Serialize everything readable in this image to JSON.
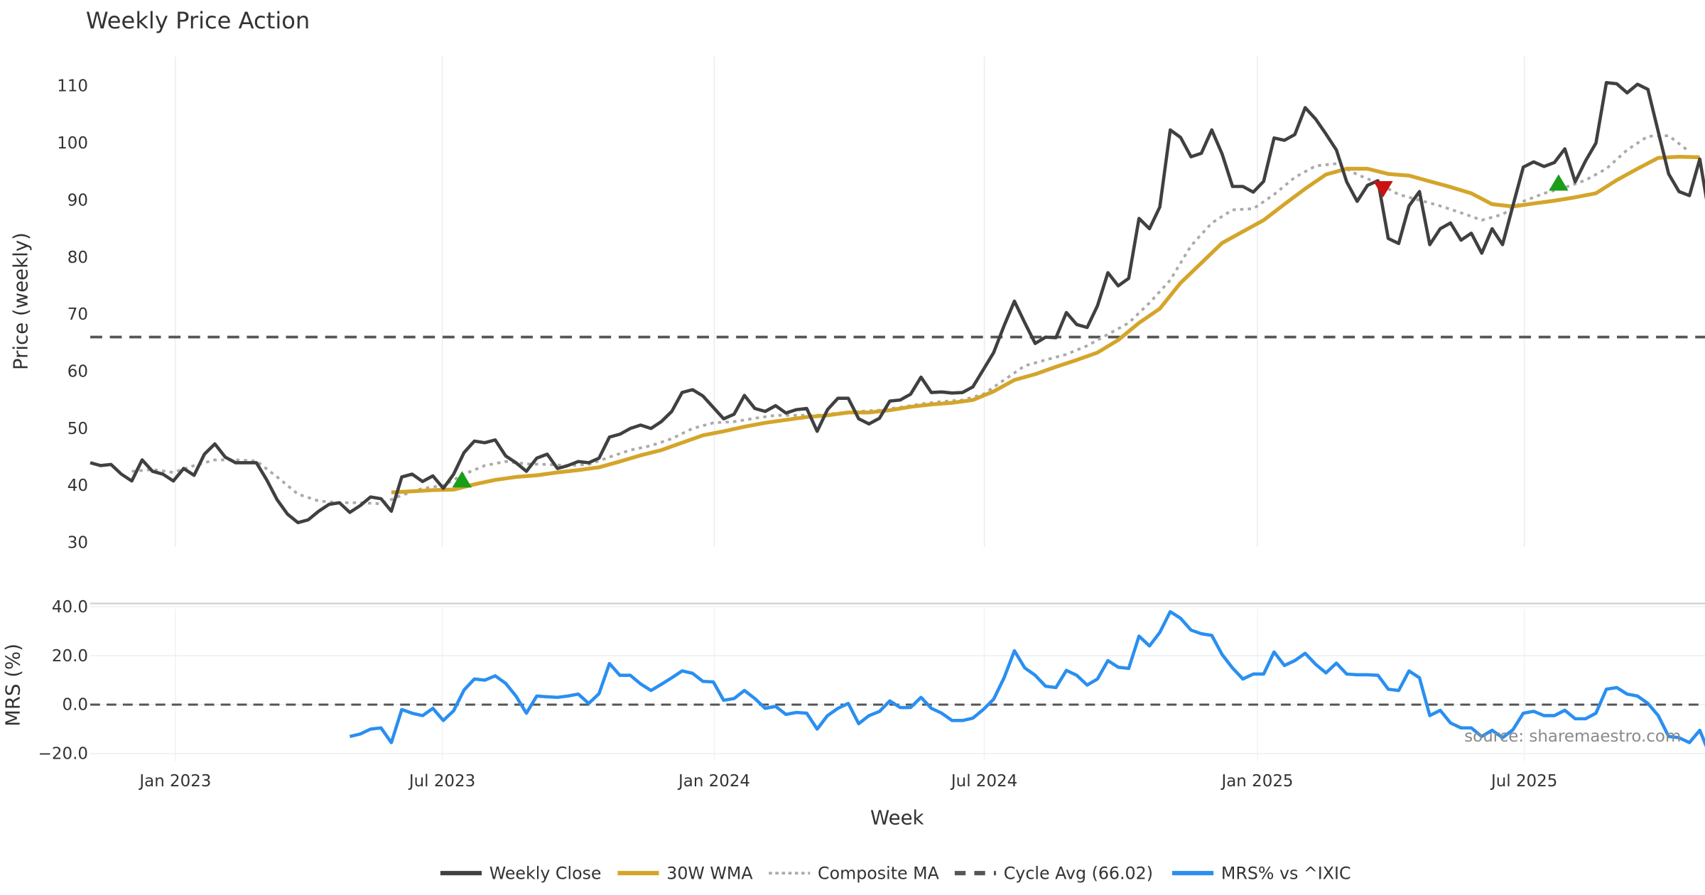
{
  "chart_data": [
    {
      "type": "line",
      "title": "Weekly Price Action",
      "ylabel": "Price (weekly)",
      "xlabel": "Week",
      "x_units": "week index since first plotted week",
      "ylim": [
        30,
        110
      ],
      "yticks": [
        30,
        40,
        50,
        60,
        70,
        80,
        90,
        100,
        110
      ],
      "xticks": [
        {
          "week": 8.2,
          "label": "Jan 2023"
        },
        {
          "week": 33.9,
          "label": "Jul 2023"
        },
        {
          "week": 60.1,
          "label": "Jan 2024"
        },
        {
          "week": 86.1,
          "label": "Jul 2024"
        },
        {
          "week": 112.4,
          "label": "Jan 2025"
        },
        {
          "week": 138.1,
          "label": "Jul 2025"
        }
      ],
      "xlim": [
        0,
        155.5
      ],
      "grid": "vertical",
      "series": [
        {
          "name": "Weekly Close",
          "color": "#404040",
          "start_week": 0,
          "step": 1,
          "values": [
            44,
            43.5,
            43.7,
            42,
            40.8,
            44.5,
            42.5,
            42,
            40.8,
            43,
            41.8,
            45.5,
            47.3,
            45,
            44,
            44,
            44,
            41,
            37.5,
            35,
            33.5,
            34,
            35.5,
            36.7,
            37,
            35.3,
            36.5,
            38,
            37.7,
            35.5,
            41.5,
            42,
            40.7,
            41.7,
            39.5,
            42,
            45.8,
            47.8,
            47.5,
            48,
            45.2,
            44,
            42.5,
            44.8,
            45.5,
            43,
            43.5,
            44.2,
            44,
            44.8,
            48.5,
            49,
            50,
            50.6,
            50,
            51.2,
            53,
            56.3,
            56.8,
            55.7,
            53.7,
            51.7,
            52.5,
            55.8,
            53.5,
            53,
            54,
            52.7,
            53.3,
            53.5,
            49.5,
            53.3,
            55.3,
            55.3,
            51.7,
            50.8,
            51.8,
            54.8,
            55,
            56,
            59,
            56.3,
            56.4,
            56.2,
            56.3,
            57.3,
            60.3,
            63.3,
            68,
            72.3,
            68.5,
            64.9,
            66,
            65.9,
            70.3,
            68.2,
            67.7,
            71.5,
            77.3,
            75,
            76.3,
            86.8,
            85,
            88.8,
            102.3,
            101,
            97.6,
            98.2,
            102.3,
            98.1,
            92.4,
            92.4,
            91.4,
            93.3,
            100.9,
            100.5,
            101.5,
            106.2,
            104.2,
            101.6,
            98.8,
            93.2,
            89.8,
            92.6,
            93.4,
            83.3,
            82.4,
            89,
            91.5,
            82.2,
            85,
            86,
            83,
            84.2,
            80.7,
            85,
            82.2,
            89,
            95.8,
            96.7,
            95.9,
            96.6,
            99,
            93.2,
            96.9,
            100,
            110.6,
            110.4,
            108.8,
            110.3,
            109.4,
            102,
            94.6,
            91.5,
            90.8,
            97.2,
            86.3
          ]
        },
        {
          "name": "30W WMA",
          "color": "#D4A52A",
          "start_week": 29,
          "step": 2,
          "values": [
            38.8,
            39,
            39.2,
            39.3,
            40.2,
            41,
            41.5,
            41.8,
            42.3,
            42.7,
            43.2,
            44.2,
            45.3,
            46.2,
            47.5,
            48.8,
            49.5,
            50.3,
            51,
            51.5,
            52,
            52.3,
            52.8,
            52.8,
            53.2,
            53.8,
            54.2,
            54.5,
            55,
            56.5,
            58.5,
            59.5,
            60.8,
            62,
            63.3,
            65.5,
            68.5,
            71,
            75.5,
            79,
            82.5,
            84.5,
            86.5,
            89.3,
            92,
            94.5,
            95.5,
            95.5,
            94.6,
            94.3,
            93.3,
            92.3,
            91.2,
            89.3,
            88.9,
            89.4,
            89.9,
            90.5,
            91.2,
            93.5,
            95.5,
            97.4,
            97.6,
            97.5
          ]
        },
        {
          "name": "Composite MA",
          "color": "#AAAAAA",
          "start_week": 4,
          "step": 2,
          "values": [
            42.5,
            42.8,
            42.3,
            43.5,
            44.5,
            44.5,
            44.3,
            41.5,
            38.5,
            37.3,
            37,
            37,
            36.8,
            38.3,
            39.5,
            40,
            42,
            43.5,
            44.2,
            43.8,
            43.7,
            43.5,
            43.7,
            45,
            46.2,
            47,
            48.2,
            50,
            51,
            51.2,
            51.8,
            52.3,
            52.3,
            52.3,
            52.7,
            53,
            53.2,
            53.7,
            54.3,
            54.7,
            55,
            56,
            58.5,
            61,
            62,
            63,
            64.5,
            66.5,
            68.5,
            72,
            76,
            82,
            86,
            88.3,
            88.5,
            91,
            94,
            96,
            96.4,
            94.5,
            93,
            91,
            90,
            89,
            87.8,
            86.5,
            87.5,
            89.8,
            91.2,
            92.2,
            93.5,
            95.5,
            98.8,
            101.2,
            101.3,
            98.5
          ]
        },
        {
          "name": "Cycle Avg (66.02)",
          "color": "#555555",
          "constant": 66.02
        }
      ],
      "signals": [
        {
          "type": "buy",
          "week": 35.8,
          "value": 41,
          "color": "#1a9e1a"
        },
        {
          "type": "sell",
          "week": 124.5,
          "value": 92,
          "color": "#cc1111"
        },
        {
          "type": "buy",
          "week": 141.4,
          "value": 93,
          "color": "#1a9e1a"
        }
      ]
    },
    {
      "type": "line",
      "ylabel": "MRS (%)",
      "ylim": [
        -20,
        40
      ],
      "yticks": [
        -20.0,
        0.0,
        20.0,
        40.0
      ],
      "ytick_labels": [
        "−20.0",
        "0.0",
        "20.0",
        "40.0"
      ],
      "series": [
        {
          "name": "MRS% vs ^IXIC",
          "color": "#2A8FF0",
          "start_week": 25,
          "step": 1,
          "values": [
            -13,
            -12,
            -10,
            -9.5,
            -15.5,
            -2,
            -3.5,
            -4.5,
            -1.5,
            -6.5,
            -2.5,
            6,
            10.5,
            10,
            11.8,
            8.7,
            3.5,
            -3.5,
            3.5,
            3.2,
            3,
            3.5,
            4.3,
            0.5,
            4.5,
            16.8,
            12,
            12,
            8.5,
            5.8,
            8.3,
            11,
            13.8,
            12.8,
            9.5,
            9.3,
            1.8,
            2.5,
            5.8,
            2.5,
            -1.5,
            -0.7,
            -4,
            -3.2,
            -3.5,
            -10,
            -4.5,
            -1.5,
            0.5,
            -7.8,
            -4.5,
            -2.8,
            1.5,
            -1.2,
            -1.2,
            3,
            -1.5,
            -3.5,
            -6.5,
            -6.5,
            -5.5,
            -2,
            2.2,
            11,
            22,
            15,
            12,
            7.5,
            7,
            14,
            12,
            8,
            10.5,
            18,
            15.3,
            14.8,
            28,
            24,
            29.5,
            38,
            35.3,
            30.5,
            29,
            28.3,
            20.5,
            15,
            10.5,
            12.5,
            12.5,
            21.5,
            16,
            18,
            21,
            16.5,
            13,
            17,
            12.5,
            12.2,
            12.2,
            12,
            6.3,
            5.8,
            13.8,
            11,
            -4.5,
            -2.3,
            -7.5,
            -9.5,
            -9.5,
            -13,
            -10.5,
            -13.5,
            -10.3,
            -3.5,
            -2.7,
            -4.5,
            -4.5,
            -2.3,
            -5.8,
            -5.8,
            -3.5,
            6.3,
            7,
            4.3,
            3.5,
            0.5,
            -4.5,
            -13,
            -13.5,
            -15.5,
            -10.5,
            -21
          ]
        },
        {
          "name": "zero",
          "constant": 0
        }
      ],
      "annotation": "source: sharemaestro.com"
    }
  ],
  "legend": {
    "position": "bottom-center",
    "items": [
      {
        "label": "Weekly Close",
        "style": "solid",
        "color": "#404040"
      },
      {
        "label": "30W WMA",
        "style": "solid",
        "color": "#D4A52A"
      },
      {
        "label": "Composite MA",
        "style": "dotted",
        "color": "#AAAAAA"
      },
      {
        "label": "Cycle Avg (66.02)",
        "style": "dashed",
        "color": "#555555"
      },
      {
        "label": "MRS% vs ^IXIC",
        "style": "solid",
        "color": "#2A8FF0"
      }
    ]
  }
}
